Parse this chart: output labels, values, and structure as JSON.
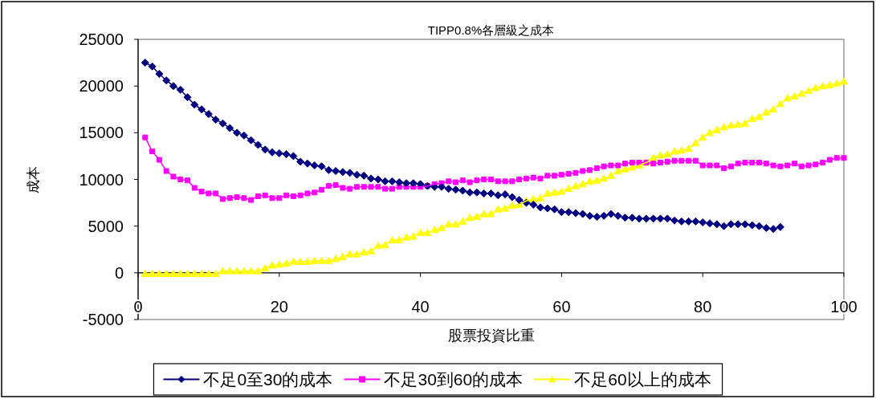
{
  "chart_data": {
    "type": "line",
    "title": "TIPP0.8%各層級之成本",
    "xlabel": "股票投資比重",
    "ylabel": "成本",
    "x": [
      1,
      2,
      3,
      4,
      5,
      6,
      7,
      8,
      9,
      10,
      11,
      12,
      13,
      14,
      15,
      16,
      17,
      18,
      19,
      20,
      21,
      22,
      23,
      24,
      25,
      26,
      27,
      28,
      29,
      30,
      31,
      32,
      33,
      34,
      35,
      36,
      37,
      38,
      39,
      40,
      41,
      42,
      43,
      44,
      45,
      46,
      47,
      48,
      49,
      50,
      51,
      52,
      53,
      54,
      55,
      56,
      57,
      58,
      59,
      60,
      61,
      62,
      63,
      64,
      65,
      66,
      67,
      68,
      69,
      70,
      71,
      72,
      73,
      74,
      75,
      76,
      77,
      78,
      79,
      80,
      81,
      82,
      83,
      84,
      85,
      86,
      87,
      88,
      89,
      90,
      91,
      92,
      93,
      94,
      95,
      96,
      97,
      98,
      99,
      100
    ],
    "series": [
      {
        "name": "不足0至30的成本",
        "color": "#000080",
        "marker": "diamond",
        "x": [
          1,
          2,
          3,
          4,
          5,
          6,
          7,
          8,
          9,
          10,
          11,
          12,
          13,
          14,
          15,
          16,
          17,
          18,
          19,
          20,
          21,
          22,
          23,
          24,
          25,
          26,
          27,
          28,
          29,
          30,
          31,
          32,
          33,
          34,
          35,
          36,
          37,
          38,
          39,
          40,
          41,
          42,
          43,
          44,
          45,
          46,
          47,
          48,
          49,
          50,
          51,
          52,
          53,
          54,
          55,
          56,
          57,
          58,
          59,
          60,
          61,
          62,
          63,
          64,
          65,
          66,
          67,
          68,
          69,
          70,
          71,
          72,
          73,
          74,
          75,
          76,
          77,
          78,
          79,
          80,
          81,
          82,
          83,
          84,
          85,
          86,
          87,
          88,
          89,
          90,
          91
        ],
        "values": [
          22500,
          22100,
          21300,
          20600,
          20000,
          19600,
          18800,
          18000,
          17500,
          17000,
          16400,
          16000,
          15500,
          15000,
          14700,
          14200,
          13700,
          13200,
          12900,
          12800,
          12700,
          12500,
          11900,
          11700,
          11500,
          11400,
          11000,
          10900,
          10800,
          10700,
          10500,
          10400,
          10100,
          10000,
          9800,
          9800,
          9700,
          9600,
          9600,
          9500,
          9300,
          9200,
          9200,
          9000,
          8900,
          8800,
          8600,
          8600,
          8500,
          8500,
          8300,
          8400,
          8100,
          7800,
          7500,
          7300,
          7000,
          6900,
          6800,
          6500,
          6500,
          6400,
          6300,
          6100,
          6000,
          6100,
          6300,
          6100,
          5900,
          5900,
          5800,
          5800,
          5800,
          5800,
          5800,
          5600,
          5500,
          5500,
          5500,
          5400,
          5300,
          5200,
          5000,
          5200,
          5200,
          5200,
          5100,
          5000,
          4800,
          4700,
          4900
        ]
      },
      {
        "name": "不足30到60的成本",
        "color": "#ff00ff",
        "marker": "square",
        "values": [
          14500,
          13000,
          12100,
          10900,
          10300,
          10000,
          9900,
          9100,
          8700,
          8500,
          8500,
          7900,
          8000,
          8100,
          8000,
          7800,
          8200,
          8300,
          8000,
          8000,
          8300,
          8200,
          8300,
          8500,
          8600,
          8900,
          9300,
          9400,
          9100,
          9000,
          9200,
          9200,
          9200,
          9200,
          9000,
          9000,
          9200,
          9200,
          9200,
          9200,
          9300,
          9500,
          9600,
          9800,
          9700,
          9900,
          9700,
          9900,
          10000,
          10000,
          9800,
          9800,
          9800,
          10000,
          10100,
          10200,
          10100,
          10400,
          10400,
          10500,
          10600,
          10700,
          10900,
          11000,
          11200,
          11400,
          11500,
          11500,
          11700,
          11800,
          11800,
          11800,
          11700,
          11800,
          11900,
          12000,
          12000,
          12000,
          12000,
          11500,
          11500,
          11500,
          11200,
          11400,
          11700,
          11800,
          11800,
          11800,
          11700,
          11500,
          11400,
          11500,
          11700,
          11400,
          11500,
          11600,
          11800,
          12100,
          12300,
          12300
        ]
      },
      {
        "name": "不足60以上的成本",
        "color": "#ffff00",
        "marker": "triangle",
        "values": [
          -100,
          -100,
          -100,
          -100,
          -100,
          -100,
          -100,
          -100,
          -100,
          -100,
          -100,
          200,
          200,
          200,
          200,
          200,
          200,
          500,
          800,
          900,
          1000,
          1200,
          1200,
          1200,
          1300,
          1300,
          1300,
          1500,
          1700,
          2000,
          2000,
          2200,
          2300,
          2900,
          3000,
          3500,
          3500,
          3800,
          3900,
          4300,
          4300,
          4600,
          4800,
          5200,
          5200,
          5500,
          5900,
          6000,
          6300,
          6300,
          6800,
          6900,
          7200,
          7300,
          7700,
          7900,
          8000,
          8500,
          8600,
          8700,
          9000,
          9300,
          9500,
          9800,
          9900,
          10100,
          10400,
          10900,
          11100,
          11300,
          11500,
          11800,
          12300,
          12600,
          12700,
          13000,
          13100,
          13300,
          13900,
          14500,
          15000,
          15300,
          15600,
          15800,
          15900,
          16000,
          16500,
          16700,
          17200,
          17500,
          18100,
          18700,
          18900,
          19200,
          19500,
          19800,
          20000,
          20100,
          20300,
          20500
        ]
      }
    ],
    "xlim": [
      0,
      100
    ],
    "xticks": [
      0,
      20,
      40,
      60,
      80,
      100
    ],
    "ylim": [
      -5000,
      25000
    ],
    "yticks": [
      -5000,
      0,
      5000,
      10000,
      15000,
      20000,
      25000
    ],
    "legend": "bottom",
    "line_style": "solid"
  }
}
